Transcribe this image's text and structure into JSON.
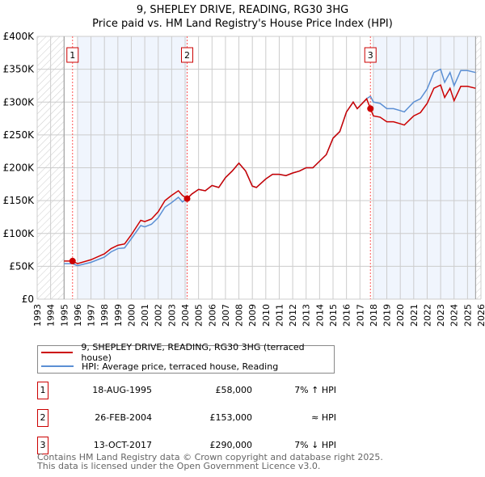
{
  "chart_data": {
    "type": "line",
    "title": "9, SHEPLEY DRIVE, READING, RG30 3HG",
    "subtitle": "Price paid vs. HM Land Registry's House Price Index (HPI)",
    "xlim": [
      1993,
      2026
    ],
    "ylim": [
      0,
      400000
    ],
    "yticks": [
      {
        "v": 0,
        "label": "£0"
      },
      {
        "v": 50000,
        "label": "£50K"
      },
      {
        "v": 100000,
        "label": "£100K"
      },
      {
        "v": 150000,
        "label": "£150K"
      },
      {
        "v": 200000,
        "label": "£200K"
      },
      {
        "v": 250000,
        "label": "£250K"
      },
      {
        "v": 300000,
        "label": "£300K"
      },
      {
        "v": 350000,
        "label": "£350K"
      },
      {
        "v": 400000,
        "label": "£400K"
      }
    ],
    "xticks": [
      "1993",
      "1994",
      "1995",
      "1996",
      "1997",
      "1998",
      "1999",
      "2000",
      "2001",
      "2002",
      "2003",
      "2004",
      "2005",
      "2006",
      "2007",
      "2008",
      "2009",
      "2010",
      "2011",
      "2012",
      "2013",
      "2014",
      "2015",
      "2016",
      "2017",
      "2018",
      "2019",
      "2020",
      "2021",
      "2022",
      "2023",
      "2024",
      "2025",
      "2026"
    ],
    "grid": true,
    "series": [
      {
        "name": "9, SHEPLEY DRIVE, READING, RG30 3HG (terraced house)",
        "color": "#cc0000",
        "x": [
          1995,
          1995.63,
          1996,
          1997,
          1998,
          1998.5,
          1999,
          1999.5,
          2000,
          2000.7,
          2001,
          2001.5,
          2002,
          2002.5,
          2003,
          2003.5,
          2003.8,
          2004.15,
          2004.5,
          2005,
          2005.5,
          2006,
          2006.5,
          2007,
          2007.5,
          2008,
          2008.5,
          2009,
          2009.3,
          2010,
          2010.5,
          2011,
          2011.5,
          2012,
          2012.5,
          2013,
          2013.5,
          2014,
          2014.5,
          2015,
          2015.5,
          2016,
          2016.5,
          2016.8,
          2017.5,
          2017.78,
          2018,
          2018.5,
          2019,
          2019.5,
          2020,
          2020.3,
          2021,
          2021.5,
          2022,
          2022.5,
          2023,
          2023.3,
          2023.7,
          2024,
          2024.5,
          2025,
          2025.6
        ],
        "y": [
          58000,
          58000,
          54000,
          60000,
          69000,
          77000,
          82000,
          84000,
          98000,
          120000,
          118000,
          122000,
          133000,
          150000,
          158000,
          165000,
          158000,
          153000,
          160000,
          167000,
          165000,
          173000,
          170000,
          185000,
          195000,
          207000,
          195000,
          172000,
          170000,
          183000,
          190000,
          190000,
          188000,
          192000,
          195000,
          200000,
          200000,
          210000,
          220000,
          245000,
          255000,
          285000,
          300000,
          290000,
          305000,
          290000,
          279000,
          277000,
          270000,
          270000,
          267000,
          265000,
          279000,
          284000,
          298000,
          321000,
          326000,
          307000,
          321000,
          302000,
          324000,
          324000,
          321000
        ]
      },
      {
        "name": "HPI: Average price, terraced house, Reading",
        "color": "#5b8fd4",
        "x": [
          1995,
          1995.63,
          1996,
          1997,
          1998,
          1998.5,
          1999,
          1999.5,
          2000,
          2000.7,
          2001,
          2001.5,
          2002,
          2002.5,
          2003,
          2003.5,
          2003.8,
          2004.15,
          2004.5,
          2005,
          2005.5,
          2006,
          2006.5,
          2007,
          2007.5,
          2008,
          2008.5,
          2009,
          2009.3,
          2010,
          2010.5,
          2011,
          2011.5,
          2012,
          2012.5,
          2013,
          2013.5,
          2014,
          2014.5,
          2015,
          2015.5,
          2016,
          2016.5,
          2016.8,
          2017.5,
          2017.78,
          2018,
          2018.5,
          2019,
          2019.5,
          2020,
          2020.3,
          2021,
          2021.5,
          2022,
          2022.5,
          2023,
          2023.3,
          2023.7,
          2024,
          2024.5,
          2025,
          2025.6
        ],
        "y": [
          54000,
          54000,
          51000,
          56000,
          64000,
          72000,
          77000,
          78000,
          92000,
          112000,
          110000,
          114000,
          124000,
          140000,
          147000,
          155000,
          148000,
          153000,
          160000,
          167000,
          165000,
          173000,
          170000,
          185000,
          195000,
          207000,
          195000,
          172000,
          170000,
          183000,
          190000,
          190000,
          188000,
          192000,
          195000,
          200000,
          200000,
          210000,
          220000,
          245000,
          255000,
          285000,
          300000,
          290000,
          305000,
          309000,
          300000,
          298000,
          290000,
          290000,
          287000,
          285000,
          300000,
          305000,
          320000,
          345000,
          350000,
          330000,
          345000,
          325000,
          348000,
          348000,
          345000
        ]
      }
    ],
    "sales": [
      {
        "n": "1",
        "date": "18-AUG-1995",
        "year": 1995.63,
        "price": "£58,000",
        "value": 58000,
        "hpi": "7% ↑ HPI"
      },
      {
        "n": "2",
        "date": "26-FEB-2004",
        "year": 2004.15,
        "price": "£153,000",
        "value": 153000,
        "hpi": "≈ HPI"
      },
      {
        "n": "3",
        "date": "13-OCT-2017",
        "year": 2017.78,
        "price": "£290,000",
        "value": 290000,
        "hpi": "7% ↓ HPI"
      }
    ],
    "legend_position": "below"
  },
  "footer": {
    "line1": "Contains HM Land Registry data © Crown copyright and database right 2025.",
    "line2": "This data is licensed under the Open Government Licence v3.0."
  }
}
